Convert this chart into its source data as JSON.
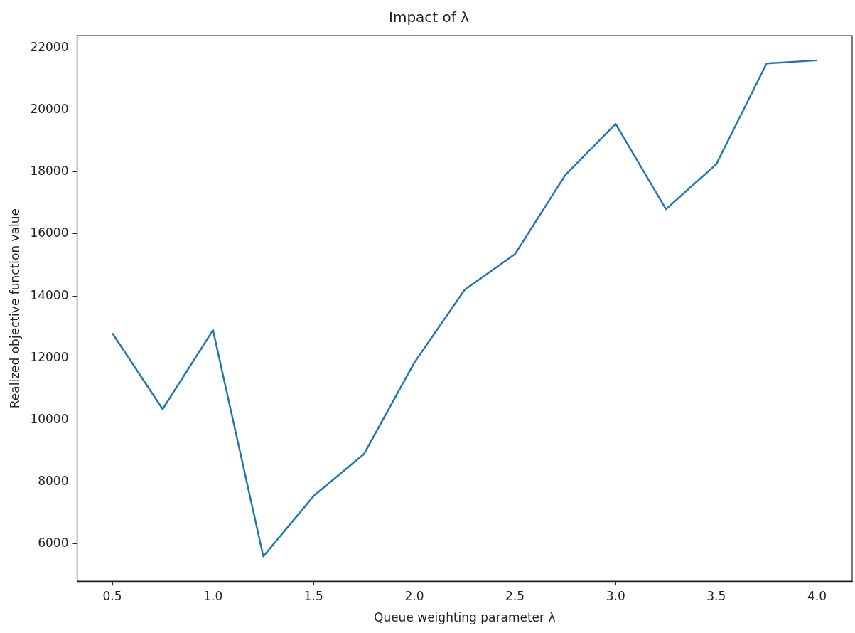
{
  "chart_data": {
    "type": "line",
    "title": "Impact of λ",
    "xlabel": "Queue weighting parameter λ",
    "ylabel": "Realized objective function value",
    "x": [
      0.5,
      0.75,
      1.0,
      1.25,
      1.5,
      1.75,
      2.0,
      2.25,
      2.5,
      2.75,
      3.0,
      3.25,
      3.5,
      3.75,
      4.0
    ],
    "series": [
      {
        "color": "#1f77b4",
        "values": [
          12800,
          10350,
          12900,
          5600,
          7550,
          8900,
          11850,
          14200,
          15350,
          17900,
          19550,
          16800,
          18250,
          21500,
          21600
        ]
      }
    ],
    "xlim": [
      0.325,
      4.175
    ],
    "xticks": [
      {
        "value": 0.5,
        "label": "0.5"
      },
      {
        "value": 1.0,
        "label": "1.0"
      },
      {
        "value": 1.5,
        "label": "1.5"
      },
      {
        "value": 2.0,
        "label": "2.0"
      },
      {
        "value": 2.5,
        "label": "2.5"
      },
      {
        "value": 3.0,
        "label": "3.0"
      },
      {
        "value": 3.5,
        "label": "3.5"
      },
      {
        "value": 4.0,
        "label": "4.0"
      }
    ],
    "ylim": [
      4800,
      22400
    ],
    "yticks": [
      6000,
      8000,
      10000,
      12000,
      14000,
      16000,
      18000,
      20000,
      22000
    ],
    "grid": false,
    "legend": false,
    "marker": "none",
    "line_style": "solid"
  }
}
